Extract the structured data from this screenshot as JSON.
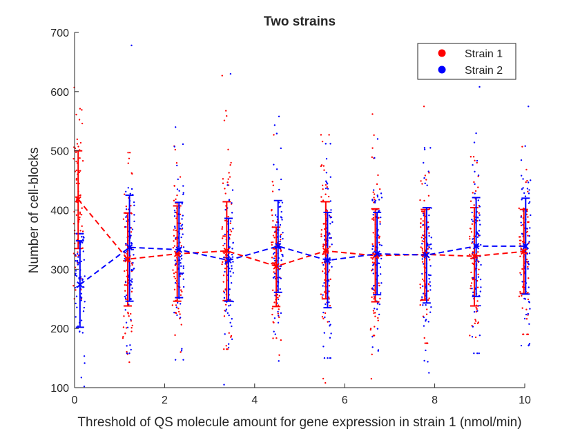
{
  "chart_data": {
    "type": "scatter",
    "title": "Two strains",
    "xlabel": "Threshold of QS molecule amount for gene expression in strain 1 (nmol/min)",
    "ylabel": "Number of cell-blocks",
    "xlim": [
      0,
      10
    ],
    "ylim": [
      100,
      700
    ],
    "xticks": [
      0,
      2,
      4,
      6,
      8,
      10
    ],
    "yticks": [
      100,
      200,
      300,
      400,
      500,
      600,
      700
    ],
    "grid": false,
    "legend_position": "top-right",
    "series": [
      {
        "name": "Strain 1",
        "color": "#ff0000",
        "x": [
          0.08,
          1.18,
          2.28,
          3.38,
          4.48,
          5.58,
          6.68,
          7.78,
          8.88,
          9.98
        ],
        "mean": [
          418,
          317,
          326,
          331,
          305,
          331,
          323,
          325,
          322,
          330
        ],
        "err_low": [
          335,
          238,
          246,
          247,
          237,
          250,
          245,
          248,
          238,
          259
        ],
        "err_high": [
          500,
          395,
          407,
          414,
          371,
          414,
          402,
          401,
          404,
          401
        ],
        "spread_min": [
          250,
          143,
          160,
          165,
          155,
          108,
          115,
          175,
          185,
          190
        ],
        "spread_max": [
          607,
          497,
          508,
          627,
          527,
          527,
          562,
          575,
          490,
          507
        ]
      },
      {
        "name": "Strain 2",
        "color": "#0000ff",
        "x": [
          0.12,
          1.22,
          2.32,
          3.42,
          4.52,
          5.62,
          6.72,
          7.82,
          8.92,
          10.02
        ],
        "mean": [
          274,
          337,
          333,
          315,
          339,
          315,
          326,
          324,
          339,
          339
        ],
        "err_low": [
          202,
          246,
          252,
          246,
          261,
          235,
          257,
          243,
          254,
          258
        ],
        "err_high": [
          348,
          425,
          413,
          386,
          416,
          396,
          396,
          404,
          421,
          420
        ],
        "spread_min": [
          102,
          158,
          147,
          105,
          145,
          150,
          162,
          125,
          158,
          171
        ],
        "spread_max": [
          360,
          678,
          540,
          630,
          558,
          512,
          520,
          505,
          608,
          575
        ]
      }
    ]
  }
}
